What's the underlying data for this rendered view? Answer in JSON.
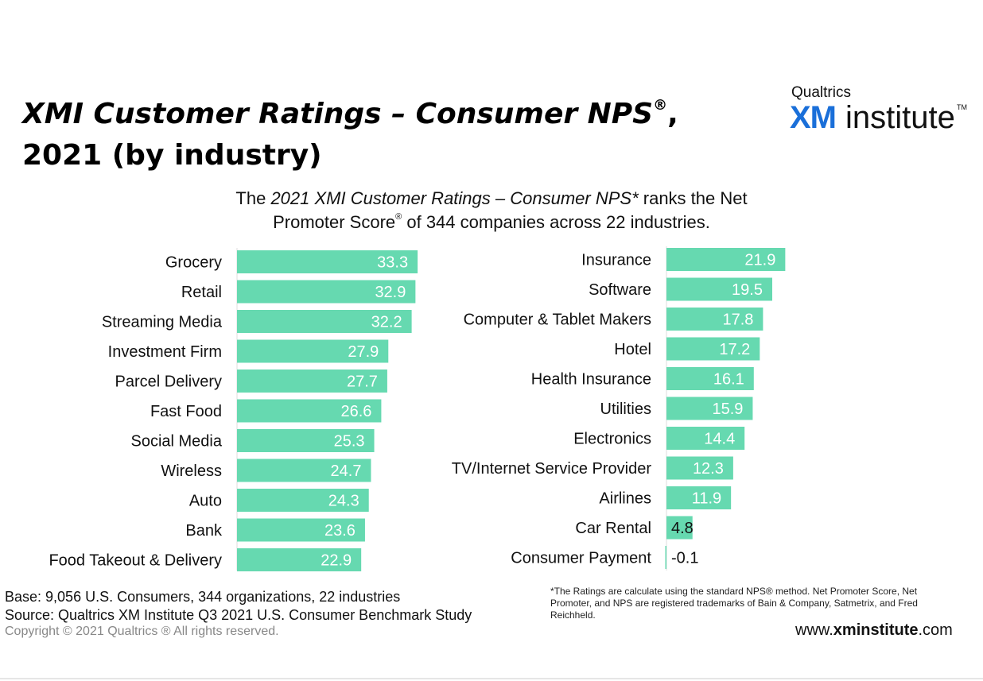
{
  "header": {
    "title_italic": "XMI Customer Ratings – Consumer NPS",
    "title_reg_mark": "®",
    "title_comma": ",",
    "title_line2": "2021 (by industry)",
    "subtitle_pre": "The ",
    "subtitle_italic": "2021 XMI Customer Ratings – Consumer NPS*",
    "subtitle_post1": " ranks the Net",
    "subtitle_line2_pre": "Promoter Score",
    "subtitle_reg_mark": "®",
    "subtitle_line2_post": " of 344 companies across 22 industries."
  },
  "logo": {
    "brand_small": "Qualtrics",
    "brand_xm": "XM",
    "brand_word": "institute",
    "brand_tm": "TM"
  },
  "colors": {
    "bar": "#66d9b0",
    "bar_label_inside": "#ffffff",
    "bar_label_outside": "#111111",
    "axis_line": "#dddddd",
    "brand_blue": "#1a6fd9"
  },
  "chart_data": [
    {
      "type": "bar",
      "orientation": "horizontal",
      "categories": [
        "Grocery",
        "Retail",
        "Streaming Media",
        "Investment Firm",
        "Parcel Delivery",
        "Fast Food",
        "Social Media",
        "Wireless",
        "Auto",
        "Bank",
        "Food Takeout & Delivery"
      ],
      "values": [
        33.3,
        32.9,
        32.2,
        27.9,
        27.7,
        26.6,
        25.3,
        24.7,
        24.3,
        23.6,
        22.9
      ],
      "data_labels": [
        "33.3",
        "32.9",
        "32.2",
        "27.9",
        "27.7",
        "26.6",
        "25.3",
        "24.7",
        "24.3",
        "23.6",
        "22.9"
      ]
    },
    {
      "type": "bar",
      "orientation": "horizontal",
      "categories": [
        "Insurance",
        "Software",
        "Computer & Tablet Makers",
        "Hotel",
        "Health Insurance",
        "Utilities",
        "Electronics",
        "TV/Internet Service Provider",
        "Airlines",
        "Car Rental",
        "Consumer Payment"
      ],
      "values": [
        21.9,
        19.5,
        17.8,
        17.2,
        16.1,
        15.9,
        14.4,
        12.3,
        11.9,
        4.8,
        -0.1
      ],
      "data_labels": [
        "21.9",
        "19.5",
        "17.8",
        "17.2",
        "16.1",
        "15.9",
        "14.4",
        "12.3",
        "11.9",
        "4.8",
        "-0.1"
      ]
    }
  ],
  "footer": {
    "base": "Base: 9,056 U.S. Consumers, 344 organizations, 22 industries",
    "source": "Source: Qualtrics XM Institute Q3 2021 U.S. Consumer Benchmark Study",
    "copyright": "Copyright © 2021 Qualtrics ® All rights reserved.",
    "note": "*The Ratings are calculate using the standard NPS® method. Net Promoter Score, Net Promoter, and NPS are registered trademarks of Bain & Company, Satmetrix, and Fred Reichheld.",
    "url_pre": "www.",
    "url_bold": "xminstitute",
    "url_post": ".com"
  }
}
